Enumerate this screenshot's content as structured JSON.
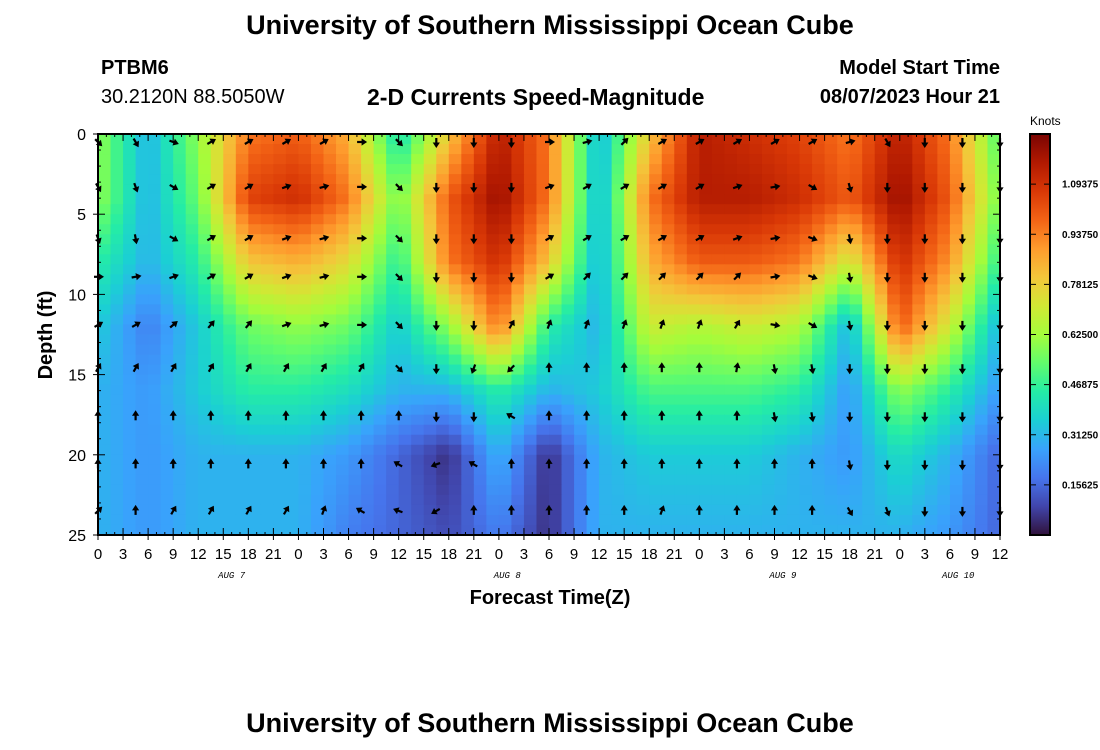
{
  "header": {
    "title": "University of Southern Mississippi Ocean Cube",
    "station_id": "PTBM6",
    "station_coords": "30.2120N  88.5050W",
    "subtitle": "2-D Currents Speed-Magnitude",
    "model_start_label": "Model Start Time",
    "model_start_value": "08/07/2023 Hour 21"
  },
  "footer": {
    "title": "University of Southern Mississippi Ocean Cube"
  },
  "colors": {
    "scale": [
      "#30123b",
      "#4145ab",
      "#4675ed",
      "#39a2fc",
      "#1bcfd4",
      "#24eca6",
      "#61fc6c",
      "#a4fc3b",
      "#d1e834",
      "#f3c63a",
      "#fe9b2d",
      "#f36315",
      "#d93806",
      "#b11901",
      "#7a0402"
    ],
    "frame": "#000000",
    "arrow": "#000000"
  },
  "chart_data": {
    "type": "heatmap",
    "title": "2-D Currents Speed-Magnitude",
    "xlabel": "Forecast Time(Z)",
    "ylabel": "Depth (ft)",
    "colorbar_label": "Knots",
    "x_range_hours": [
      0,
      108
    ],
    "y_range_ft": [
      0,
      25
    ],
    "x_tick_hours": [
      0,
      3,
      6,
      9,
      12,
      15,
      18,
      21,
      24,
      27,
      30,
      33,
      36,
      39,
      42,
      45,
      48,
      51,
      54,
      57,
      60,
      63,
      66,
      69,
      72,
      75,
      78,
      81,
      84,
      87,
      90,
      93,
      96,
      99,
      102,
      105,
      108
    ],
    "x_tick_labels": [
      "0",
      "3",
      "6",
      "9",
      "12",
      "15",
      "18",
      "21",
      "0",
      "3",
      "6",
      "9",
      "12",
      "15",
      "18",
      "21",
      "0",
      "3",
      "6",
      "9",
      "12",
      "15",
      "18",
      "21",
      "0",
      "3",
      "6",
      "9",
      "12",
      "15",
      "18",
      "21",
      "0",
      "3",
      "6",
      "9",
      "12"
    ],
    "y_ticks": [
      0,
      5,
      10,
      15,
      20,
      25
    ],
    "y_tick_labels": [
      "0",
      "5",
      "10",
      "15",
      "20",
      "25"
    ],
    "day_labels": [
      {
        "text": "AUG 7",
        "hour": 16
      },
      {
        "text": "AUG 8",
        "hour": 49
      },
      {
        "text": "AUG 9",
        "hour": 82
      },
      {
        "text": "AUG 10",
        "hour": 103
      }
    ],
    "colorbar_min": 0,
    "colorbar_max": 1.25,
    "colorbar_ticks": [
      0.15625,
      0.3125,
      0.46875,
      0.625,
      0.78125,
      0.9375,
      1.09375
    ],
    "colorbar_tick_labels": [
      "0.15625",
      "0.31250",
      "0.46875",
      "0.62500",
      "0.78125",
      "0.93750",
      "1.09375"
    ],
    "speed_grid": {
      "x_hours": [
        0,
        6,
        12,
        18,
        24,
        30,
        36,
        42,
        48,
        54,
        60,
        66,
        72,
        78,
        84,
        90,
        96,
        102,
        108
      ],
      "depths_ft": [
        0,
        4,
        8,
        12,
        16,
        20,
        25
      ],
      "values": [
        [
          0.6,
          0.3,
          0.6,
          0.95,
          1.0,
          0.85,
          0.4,
          0.8,
          1.15,
          0.95,
          0.3,
          0.8,
          1.15,
          1.1,
          1.05,
          0.95,
          1.15,
          0.95,
          0.5
        ],
        [
          0.6,
          0.3,
          0.55,
          1.05,
          1.1,
          0.95,
          0.55,
          1.0,
          1.2,
          0.95,
          0.3,
          0.95,
          1.15,
          1.15,
          1.1,
          1.0,
          1.2,
          1.0,
          0.55
        ],
        [
          0.45,
          0.3,
          0.45,
          0.8,
          0.85,
          0.75,
          0.45,
          0.95,
          1.1,
          0.8,
          0.3,
          0.85,
          1.0,
          1.0,
          0.95,
          0.7,
          1.1,
          0.9,
          0.45
        ],
        [
          0.35,
          0.2,
          0.35,
          0.55,
          0.6,
          0.55,
          0.35,
          0.6,
          0.95,
          0.45,
          0.3,
          0.7,
          0.65,
          0.7,
          0.65,
          0.3,
          1.0,
          0.7,
          0.3
        ],
        [
          0.3,
          0.25,
          0.35,
          0.45,
          0.45,
          0.4,
          0.3,
          0.3,
          0.45,
          0.3,
          0.35,
          0.5,
          0.5,
          0.5,
          0.45,
          0.25,
          0.6,
          0.45,
          0.25
        ],
        [
          0.3,
          0.25,
          0.3,
          0.3,
          0.3,
          0.25,
          0.15,
          0.05,
          0.3,
          0.05,
          0.3,
          0.35,
          0.35,
          0.35,
          0.3,
          0.25,
          0.4,
          0.3,
          0.15
        ],
        [
          0.3,
          0.25,
          0.3,
          0.3,
          0.3,
          0.2,
          0.15,
          0.1,
          0.2,
          0.05,
          0.3,
          0.3,
          0.3,
          0.3,
          0.3,
          0.3,
          0.3,
          0.25,
          0.15
        ]
      ]
    },
    "arrows": {
      "x_hours": [
        0,
        4.5,
        9,
        13.5,
        18,
        22.5,
        27,
        31.5,
        36,
        40.5,
        45,
        49.5,
        54,
        58.5,
        63,
        67.5,
        72,
        76.5,
        81,
        85.5,
        90,
        94.5,
        99,
        103.5,
        108
      ],
      "depths_ft": [
        0.5,
        3.3,
        6.5,
        8.9,
        11.9,
        14.6,
        17.6,
        20.6,
        23.5
      ],
      "direction_deg": [
        [
          135,
          150,
          110,
          60,
          60,
          60,
          60,
          90,
          135,
          180,
          180,
          180,
          90,
          75,
          45,
          60,
          60,
          60,
          60,
          60,
          75,
          150,
          180,
          180,
          180
        ],
        [
          150,
          160,
          120,
          60,
          60,
          70,
          75,
          90,
          135,
          180,
          180,
          180,
          70,
          60,
          60,
          60,
          60,
          70,
          80,
          120,
          165,
          180,
          180,
          180,
          180
        ],
        [
          160,
          170,
          120,
          60,
          60,
          70,
          75,
          90,
          135,
          180,
          180,
          180,
          60,
          60,
          60,
          60,
          60,
          70,
          80,
          110,
          170,
          180,
          180,
          180,
          180
        ],
        [
          90,
          80,
          70,
          60,
          60,
          70,
          75,
          90,
          135,
          180,
          180,
          180,
          60,
          45,
          45,
          45,
          45,
          45,
          80,
          110,
          170,
          180,
          180,
          180,
          180
        ],
        [
          60,
          60,
          50,
          40,
          40,
          70,
          75,
          90,
          135,
          180,
          180,
          30,
          20,
          20,
          20,
          20,
          20,
          30,
          100,
          120,
          170,
          180,
          180,
          180,
          180
        ],
        [
          30,
          30,
          30,
          30,
          30,
          30,
          30,
          30,
          135,
          180,
          200,
          225,
          0,
          0,
          0,
          0,
          0,
          10,
          170,
          170,
          180,
          180,
          180,
          180,
          180
        ],
        [
          0,
          0,
          0,
          0,
          0,
          0,
          0,
          0,
          0,
          180,
          180,
          300,
          0,
          0,
          0,
          0,
          0,
          0,
          170,
          170,
          180,
          180,
          180,
          180,
          180
        ],
        [
          0,
          0,
          0,
          0,
          0,
          0,
          0,
          0,
          300,
          250,
          300,
          0,
          0,
          0,
          0,
          0,
          0,
          0,
          0,
          0,
          170,
          180,
          180,
          180,
          180
        ],
        [
          45,
          0,
          30,
          30,
          30,
          30,
          20,
          300,
          290,
          240,
          0,
          0,
          0,
          0,
          0,
          20,
          0,
          0,
          0,
          0,
          150,
          160,
          180,
          180,
          180
        ]
      ]
    }
  }
}
